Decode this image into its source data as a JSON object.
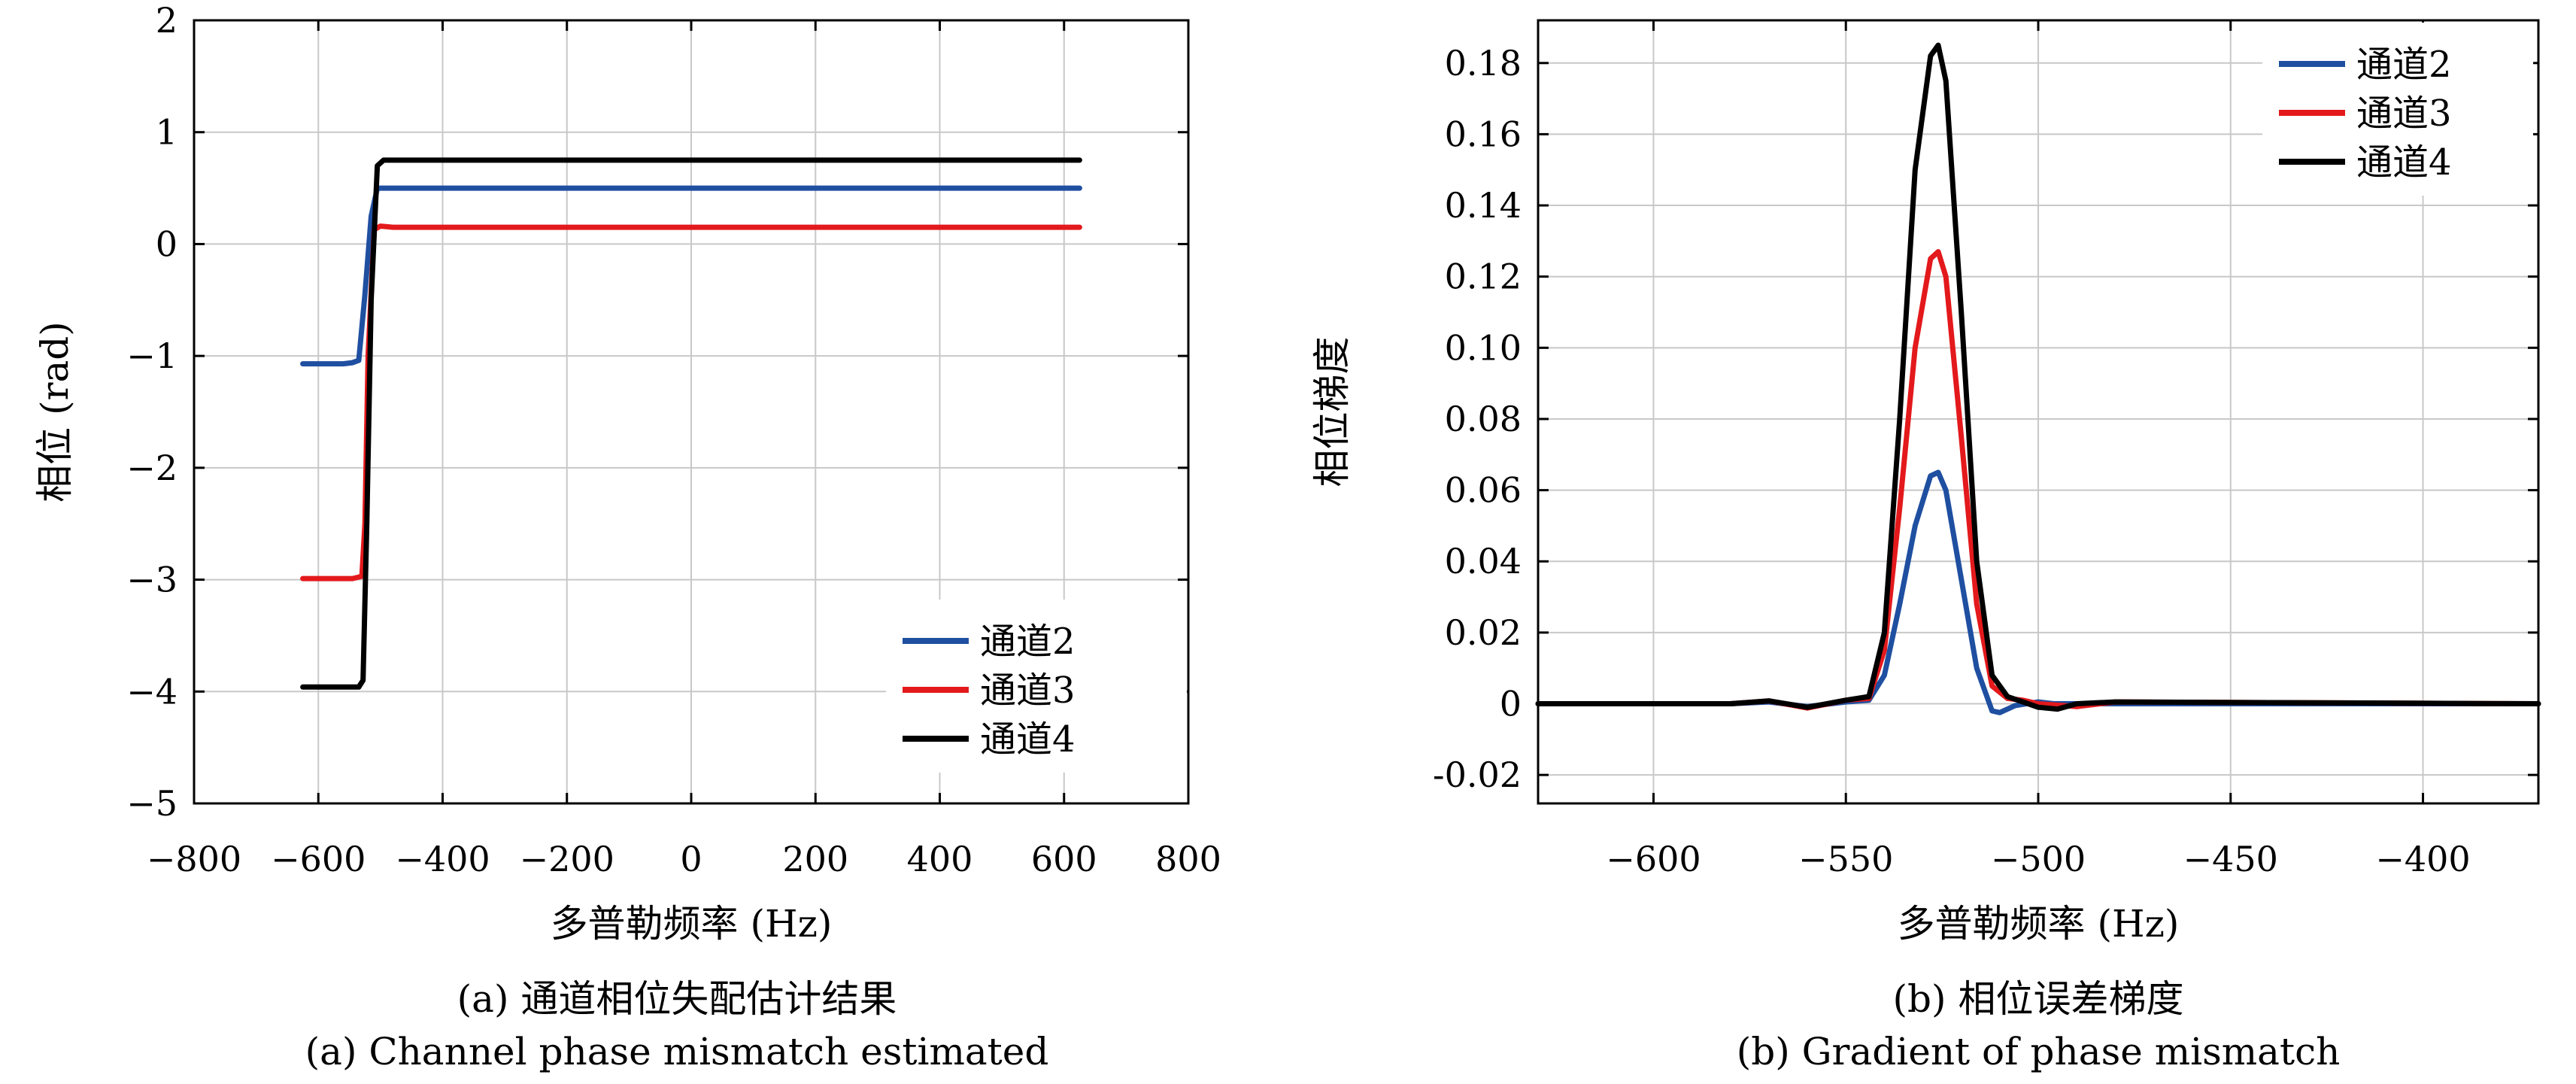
{
  "figure": {
    "left_caption_zh": "(a) 通道相位失配估计结果",
    "left_caption_en": "(a) Channel phase mismatch estimated",
    "right_caption_zh": "(b) 相位误差梯度",
    "right_caption_en": "(b) Gradient of phase mismatch"
  },
  "colors": {
    "通道2": "#1f4fa0",
    "通道3": "#e3191c",
    "通道4": "#000000",
    "grid": "#c8c8c8"
  },
  "chart_data": [
    {
      "type": "line",
      "title": "",
      "xlabel": "多普勒频率 (Hz)",
      "ylabel": "相位 (rad)",
      "xlim": [
        -800,
        800
      ],
      "ylim": [
        -5,
        2
      ],
      "xticks": [
        -800,
        -600,
        -400,
        -200,
        0,
        200,
        400,
        600,
        800
      ],
      "xtick_labels": [
        "−800",
        "−600",
        "−400",
        "−200",
        "0",
        "200",
        "400",
        "600",
        "800"
      ],
      "yticks": [
        2,
        1,
        0,
        -1,
        -2,
        -3,
        -4,
        -5
      ],
      "ytick_labels": [
        "2",
        "1",
        "0",
        "−1",
        "−2",
        "−3",
        "−4",
        "−5"
      ],
      "grid": true,
      "legend_position": "bottom-right",
      "series": [
        {
          "name": "通道2",
          "color": "#1f4fa0",
          "x": [
            -625,
            -560,
            -545,
            -535,
            -525,
            -515,
            -505,
            -495,
            -470,
            625
          ],
          "y": [
            -1.07,
            -1.07,
            -1.06,
            -1.04,
            -0.45,
            0.25,
            0.5,
            0.5,
            0.5,
            0.5
          ]
        },
        {
          "name": "通道3",
          "color": "#e3191c",
          "x": [
            -625,
            -560,
            -545,
            -530,
            -525,
            -520,
            -510,
            -500,
            -480,
            625
          ],
          "y": [
            -2.99,
            -2.99,
            -2.99,
            -2.97,
            -2.5,
            -1.0,
            0.13,
            0.16,
            0.15,
            0.15
          ]
        },
        {
          "name": "通道4",
          "color": "#000000",
          "x": [
            -625,
            -560,
            -535,
            -528,
            -522,
            -515,
            -505,
            -495,
            -480,
            625
          ],
          "y": [
            -3.96,
            -3.96,
            -3.96,
            -3.9,
            -2.5,
            -0.5,
            0.7,
            0.75,
            0.75,
            0.75
          ]
        }
      ]
    },
    {
      "type": "line",
      "title": "",
      "xlabel": "多普勒频率 (Hz)",
      "ylabel": "相位梯度",
      "xlim": [
        -630,
        -370
      ],
      "ylim": [
        -0.028,
        0.192
      ],
      "xticks": [
        -600,
        -550,
        -500,
        -450,
        -400
      ],
      "xtick_labels": [
        "−600",
        "−550",
        "−500",
        "−450",
        "−400"
      ],
      "yticks": [
        0.18,
        0.16,
        0.14,
        0.12,
        0.1,
        0.08,
        0.06,
        0.04,
        0.02,
        0,
        -0.02
      ],
      "ytick_labels": [
        "0.18",
        "0.16",
        "0.14",
        "0.12",
        "0.10",
        "0.08",
        "0.06",
        "0.04",
        "0.02",
        "0",
        "-0.02"
      ],
      "grid": true,
      "legend_position": "top-right",
      "series": [
        {
          "name": "通道2",
          "color": "#1f4fa0",
          "x": [
            -630,
            -580,
            -570,
            -560,
            -550,
            -544,
            -540,
            -536,
            -532,
            -528,
            -526,
            -524,
            -520,
            -516,
            -512,
            -510,
            -506,
            -500,
            -496,
            -490,
            -480,
            -370
          ],
          "y": [
            0,
            0,
            0.0005,
            -0.0008,
            0.0005,
            0.001,
            0.008,
            0.028,
            0.05,
            0.064,
            0.065,
            0.06,
            0.035,
            0.01,
            -0.002,
            -0.0025,
            -0.0005,
            0.0005,
            0,
            0,
            0,
            0
          ]
        },
        {
          "name": "通道3",
          "color": "#e3191c",
          "x": [
            -630,
            -580,
            -570,
            -560,
            -550,
            -544,
            -540,
            -536,
            -532,
            -528,
            -526,
            -524,
            -520,
            -516,
            -512,
            -508,
            -504,
            -500,
            -490,
            -480,
            -370
          ],
          "y": [
            0,
            0,
            0.0008,
            -0.0012,
            0.001,
            0.0015,
            0.015,
            0.055,
            0.1,
            0.125,
            0.127,
            0.12,
            0.075,
            0.028,
            0.005,
            0.0015,
            0.001,
            0,
            -0.0008,
            0.0005,
            0
          ]
        },
        {
          "name": "通道4",
          "color": "#000000",
          "x": [
            -630,
            -580,
            -570,
            -560,
            -550,
            -544,
            -540,
            -536,
            -532,
            -528,
            -526,
            -524,
            -520,
            -516,
            -512,
            -508,
            -504,
            -500,
            -495,
            -490,
            -480,
            -370
          ],
          "y": [
            0,
            0,
            0.0008,
            -0.001,
            0.001,
            0.002,
            0.02,
            0.08,
            0.15,
            0.182,
            0.185,
            0.175,
            0.11,
            0.04,
            0.008,
            0.002,
            0.0005,
            -0.001,
            -0.0015,
            0,
            0.0005,
            0
          ]
        }
      ]
    }
  ]
}
